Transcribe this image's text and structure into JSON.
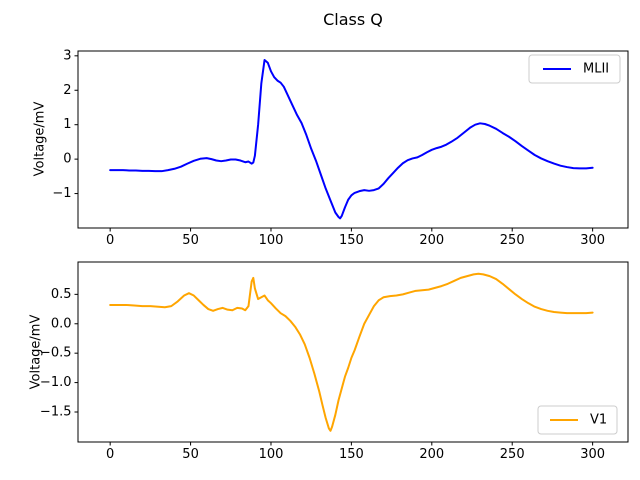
{
  "figure": {
    "title": "Class Q",
    "background": "#ffffff"
  },
  "chart_data": [
    {
      "type": "line",
      "ylabel": "Voltage/mV",
      "xlim": [
        -20,
        322
      ],
      "ylim": [
        -2.0,
        3.14
      ],
      "grid": false,
      "legend_position": "upper right",
      "xticks": {
        "values": [
          0,
          50,
          100,
          150,
          200,
          250,
          300
        ],
        "labels": [
          "0",
          "50",
          "100",
          "150",
          "200",
          "250",
          "300"
        ]
      },
      "yticks": {
        "values": [
          -1,
          0,
          1,
          2,
          3
        ],
        "labels": [
          "−1",
          "0",
          "1",
          "2",
          "3"
        ]
      },
      "series": [
        {
          "name": "MLII",
          "color": "#0000ff",
          "points": [
            [
              0,
              -0.32
            ],
            [
              4,
              -0.32
            ],
            [
              8,
              -0.32
            ],
            [
              12,
              -0.33
            ],
            [
              16,
              -0.33
            ],
            [
              20,
              -0.34
            ],
            [
              24,
              -0.34
            ],
            [
              28,
              -0.35
            ],
            [
              32,
              -0.35
            ],
            [
              36,
              -0.32
            ],
            [
              40,
              -0.28
            ],
            [
              44,
              -0.22
            ],
            [
              48,
              -0.13
            ],
            [
              52,
              -0.05
            ],
            [
              56,
              0.01
            ],
            [
              60,
              0.03
            ],
            [
              63,
              0.0
            ],
            [
              66,
              -0.04
            ],
            [
              69,
              -0.06
            ],
            [
              72,
              -0.04
            ],
            [
              75,
              -0.01
            ],
            [
              78,
              -0.01
            ],
            [
              81,
              -0.04
            ],
            [
              84,
              -0.09
            ],
            [
              86,
              -0.07
            ],
            [
              88,
              -0.13
            ],
            [
              89,
              -0.1
            ],
            [
              90,
              0.1
            ],
            [
              92,
              1.0
            ],
            [
              94,
              2.2
            ],
            [
              96,
              2.88
            ],
            [
              98,
              2.8
            ],
            [
              100,
              2.55
            ],
            [
              102,
              2.38
            ],
            [
              104,
              2.28
            ],
            [
              106,
              2.22
            ],
            [
              108,
              2.1
            ],
            [
              110,
              1.9
            ],
            [
              113,
              1.6
            ],
            [
              116,
              1.3
            ],
            [
              119,
              1.05
            ],
            [
              122,
              0.7
            ],
            [
              125,
              0.3
            ],
            [
              128,
              -0.05
            ],
            [
              131,
              -0.45
            ],
            [
              134,
              -0.85
            ],
            [
              137,
              -1.2
            ],
            [
              140,
              -1.55
            ],
            [
              142,
              -1.68
            ],
            [
              143,
              -1.72
            ],
            [
              144,
              -1.65
            ],
            [
              146,
              -1.4
            ],
            [
              148,
              -1.18
            ],
            [
              150,
              -1.05
            ],
            [
              152,
              -0.98
            ],
            [
              155,
              -0.93
            ],
            [
              158,
              -0.9
            ],
            [
              161,
              -0.92
            ],
            [
              164,
              -0.9
            ],
            [
              167,
              -0.85
            ],
            [
              170,
              -0.72
            ],
            [
              173,
              -0.55
            ],
            [
              176,
              -0.4
            ],
            [
              179,
              -0.25
            ],
            [
              182,
              -0.12
            ],
            [
              185,
              -0.03
            ],
            [
              188,
              0.02
            ],
            [
              191,
              0.05
            ],
            [
              194,
              0.12
            ],
            [
              197,
              0.2
            ],
            [
              200,
              0.27
            ],
            [
              203,
              0.32
            ],
            [
              206,
              0.36
            ],
            [
              209,
              0.42
            ],
            [
              212,
              0.5
            ],
            [
              216,
              0.62
            ],
            [
              220,
              0.77
            ],
            [
              224,
              0.92
            ],
            [
              227,
              1.0
            ],
            [
              230,
              1.04
            ],
            [
              233,
              1.02
            ],
            [
              236,
              0.97
            ],
            [
              240,
              0.88
            ],
            [
              244,
              0.76
            ],
            [
              248,
              0.65
            ],
            [
              252,
              0.52
            ],
            [
              256,
              0.38
            ],
            [
              260,
              0.25
            ],
            [
              264,
              0.12
            ],
            [
              268,
              0.02
            ],
            [
              272,
              -0.06
            ],
            [
              276,
              -0.13
            ],
            [
              280,
              -0.19
            ],
            [
              284,
              -0.23
            ],
            [
              288,
              -0.26
            ],
            [
              292,
              -0.27
            ],
            [
              296,
              -0.27
            ],
            [
              300,
              -0.25
            ]
          ]
        }
      ]
    },
    {
      "type": "line",
      "ylabel": "Voltage/mV",
      "xlim": [
        -20,
        322
      ],
      "ylim": [
        -2.01,
        1.05
      ],
      "grid": false,
      "legend_position": "lower right",
      "xticks": {
        "values": [
          0,
          50,
          100,
          150,
          200,
          250,
          300
        ],
        "labels": [
          "0",
          "50",
          "100",
          "150",
          "200",
          "250",
          "300"
        ]
      },
      "yticks": {
        "values": [
          -1.5,
          -1.0,
          -0.5,
          0.0,
          0.5
        ],
        "labels": [
          "−1.5",
          "−1.0",
          "−0.5",
          "0.0",
          "0.5"
        ]
      },
      "series": [
        {
          "name": "V1",
          "color": "#ffa500",
          "points": [
            [
              0,
              0.32
            ],
            [
              5,
              0.32
            ],
            [
              10,
              0.32
            ],
            [
              15,
              0.31
            ],
            [
              20,
              0.3
            ],
            [
              25,
              0.3
            ],
            [
              30,
              0.29
            ],
            [
              34,
              0.28
            ],
            [
              38,
              0.3
            ],
            [
              42,
              0.38
            ],
            [
              46,
              0.48
            ],
            [
              49,
              0.52
            ],
            [
              52,
              0.48
            ],
            [
              55,
              0.4
            ],
            [
              58,
              0.32
            ],
            [
              61,
              0.25
            ],
            [
              64,
              0.22
            ],
            [
              67,
              0.25
            ],
            [
              70,
              0.27
            ],
            [
              73,
              0.24
            ],
            [
              76,
              0.23
            ],
            [
              79,
              0.27
            ],
            [
              82,
              0.26
            ],
            [
              84,
              0.23
            ],
            [
              86,
              0.3
            ],
            [
              88,
              0.72
            ],
            [
              89,
              0.78
            ],
            [
              90,
              0.6
            ],
            [
              92,
              0.42
            ],
            [
              94,
              0.45
            ],
            [
              96,
              0.48
            ],
            [
              98,
              0.4
            ],
            [
              100,
              0.35
            ],
            [
              103,
              0.26
            ],
            [
              106,
              0.18
            ],
            [
              109,
              0.13
            ],
            [
              112,
              0.05
            ],
            [
              115,
              -0.05
            ],
            [
              118,
              -0.18
            ],
            [
              121,
              -0.35
            ],
            [
              124,
              -0.58
            ],
            [
              127,
              -0.85
            ],
            [
              130,
              -1.15
            ],
            [
              132,
              -1.38
            ],
            [
              134,
              -1.6
            ],
            [
              136,
              -1.78
            ],
            [
              137,
              -1.82
            ],
            [
              138,
              -1.75
            ],
            [
              140,
              -1.55
            ],
            [
              142,
              -1.3
            ],
            [
              144,
              -1.1
            ],
            [
              146,
              -0.9
            ],
            [
              148,
              -0.75
            ],
            [
              150,
              -0.58
            ],
            [
              152,
              -0.45
            ],
            [
              155,
              -0.22
            ],
            [
              158,
              0.0
            ],
            [
              161,
              0.15
            ],
            [
              164,
              0.3
            ],
            [
              167,
              0.4
            ],
            [
              170,
              0.45
            ],
            [
              174,
              0.47
            ],
            [
              178,
              0.48
            ],
            [
              182,
              0.5
            ],
            [
              186,
              0.53
            ],
            [
              190,
              0.56
            ],
            [
              194,
              0.57
            ],
            [
              198,
              0.58
            ],
            [
              202,
              0.61
            ],
            [
              206,
              0.64
            ],
            [
              210,
              0.68
            ],
            [
              214,
              0.73
            ],
            [
              218,
              0.78
            ],
            [
              222,
              0.81
            ],
            [
              226,
              0.84
            ],
            [
              229,
              0.85
            ],
            [
              232,
              0.84
            ],
            [
              236,
              0.81
            ],
            [
              240,
              0.76
            ],
            [
              244,
              0.68
            ],
            [
              248,
              0.59
            ],
            [
              252,
              0.5
            ],
            [
              256,
              0.42
            ],
            [
              260,
              0.35
            ],
            [
              264,
              0.29
            ],
            [
              268,
              0.25
            ],
            [
              272,
              0.22
            ],
            [
              276,
              0.2
            ],
            [
              280,
              0.19
            ],
            [
              284,
              0.18
            ],
            [
              288,
              0.18
            ],
            [
              292,
              0.18
            ],
            [
              296,
              0.18
            ],
            [
              300,
              0.19
            ]
          ]
        }
      ]
    }
  ]
}
